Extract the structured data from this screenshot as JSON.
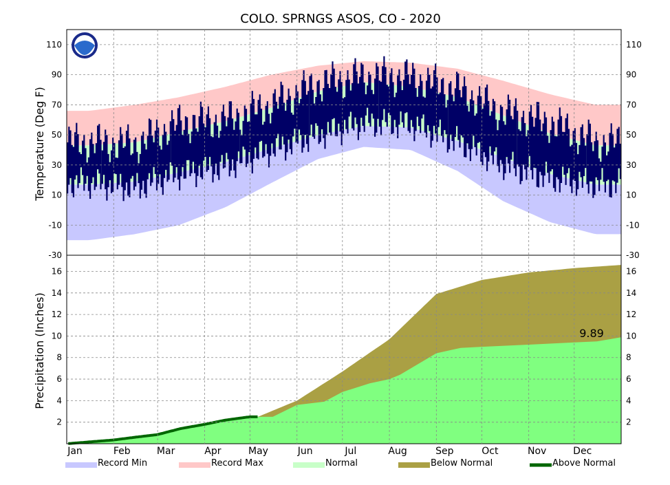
{
  "chart_data": {
    "type": "area",
    "title": "COLO. SPRNGS ASOS, CO - 2020",
    "months": [
      "Jan",
      "Feb",
      "Mar",
      "Apr",
      "May",
      "Jun",
      "Jul",
      "Aug",
      "Sep",
      "Oct",
      "Nov",
      "Dec"
    ],
    "colors": {
      "record_min": "#c8c8ff",
      "record_max": "#ffc8c8",
      "normal": "#c8ffc8",
      "observed": "#000066",
      "below_normal": "#aaa044",
      "above_normal": "#006600",
      "precip_fill": "#80ff80"
    },
    "temperature": {
      "ylabel": "Temperature (Deg F)",
      "ylim": [
        -30,
        120
      ],
      "ticks": [
        -30,
        -10,
        10,
        30,
        50,
        70,
        90,
        110
      ],
      "grid": true,
      "record_max_month": [
        66,
        70,
        75,
        82,
        90,
        96,
        99,
        98,
        94,
        86,
        77,
        70
      ],
      "record_min_month": [
        -20,
        -16,
        -10,
        2,
        18,
        34,
        42,
        40,
        26,
        6,
        -8,
        -16
      ],
      "normal_high_month": [
        43,
        45,
        52,
        59,
        68,
        79,
        85,
        82,
        75,
        63,
        51,
        43
      ],
      "normal_low_month": [
        17,
        19,
        25,
        32,
        41,
        50,
        56,
        55,
        46,
        35,
        24,
        17
      ],
      "observed_high_month": [
        45,
        44,
        58,
        60,
        70,
        84,
        89,
        88,
        80,
        65,
        58,
        45
      ],
      "observed_low_month": [
        18,
        15,
        24,
        29,
        40,
        50,
        58,
        57,
        45,
        30,
        21,
        17
      ]
    },
    "precipitation": {
      "ylabel": "Precipitation (Inches)",
      "ylim": [
        0,
        17.5
      ],
      "ticks": [
        2,
        4,
        6,
        8,
        10,
        12,
        14,
        16
      ],
      "grid": true,
      "annotation": "9.89",
      "normal_cumulative": {
        "day": [
          0,
          31,
          60,
          91,
          121,
          152,
          182,
          213,
          244,
          274,
          305,
          335,
          366
        ],
        "value": [
          0,
          0.3,
          0.7,
          1.3,
          2.2,
          4.0,
          6.7,
          9.7,
          13.9,
          15.2,
          15.9,
          16.3,
          16.6
        ]
      },
      "observed_cumulative": {
        "day": [
          0,
          31,
          45,
          60,
          75,
          91,
          105,
          121,
          136,
          152,
          170,
          182,
          200,
          213,
          220,
          244,
          260,
          274,
          290,
          305,
          320,
          335,
          350,
          366
        ],
        "value": [
          0,
          0.35,
          0.6,
          0.85,
          1.4,
          1.8,
          2.2,
          2.5,
          2.5,
          3.6,
          3.9,
          4.8,
          5.6,
          6.0,
          6.4,
          8.4,
          8.9,
          9.0,
          9.1,
          9.2,
          9.3,
          9.4,
          9.5,
          9.89
        ]
      }
    },
    "legend": [
      "Record Min",
      "Record Max",
      "Normal",
      "Below Normal",
      "Above Normal"
    ]
  }
}
